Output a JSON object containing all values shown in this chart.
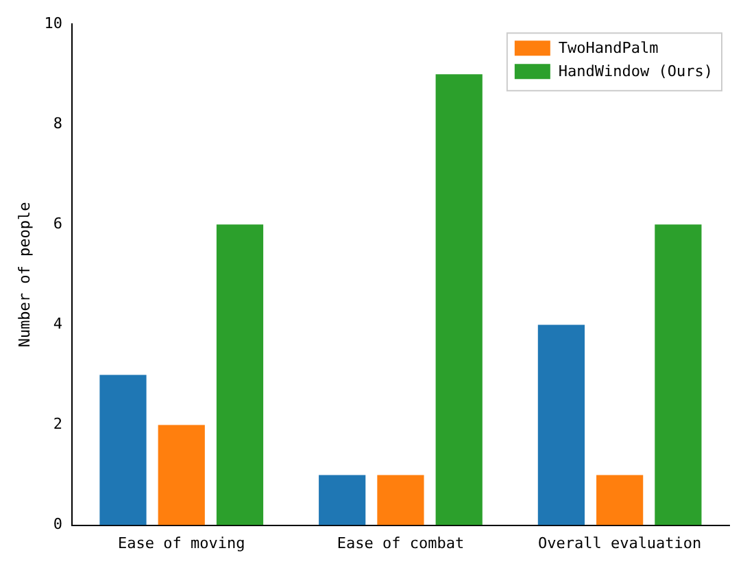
{
  "chart_data": {
    "type": "bar",
    "ylabel": "Number of people",
    "categories": [
      "Ease of moving",
      "Ease of combat",
      "Overall evaluation"
    ],
    "series": [
      {
        "color": "#1f77b4",
        "values": [
          3,
          1,
          4
        ]
      },
      {
        "name": "TwoHandPalm",
        "color": "#ff7f0e",
        "values": [
          2,
          1,
          1
        ]
      },
      {
        "name": "HandWindow (Ours)",
        "color": "#2ca02c",
        "values": [
          6,
          9,
          6
        ]
      }
    ],
    "ylim": [
      0,
      10
    ],
    "yticks": [
      0,
      2,
      4,
      6,
      8,
      10
    ],
    "grid": false,
    "legend": "top right"
  }
}
